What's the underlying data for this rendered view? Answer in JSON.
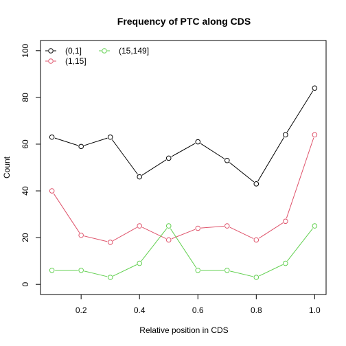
{
  "chart_data": {
    "type": "line",
    "title": "Frequency of PTC along CDS",
    "xlabel": "Relative position in CDS",
    "ylabel": "Count",
    "x": [
      0.1,
      0.2,
      0.3,
      0.4,
      0.5,
      0.6,
      0.7,
      0.8,
      0.9,
      1.0
    ],
    "xlim": [
      0.1,
      1.0
    ],
    "ylim": [
      0,
      100
    ],
    "x_ticks": [
      0.2,
      0.4,
      0.6,
      0.8,
      1.0
    ],
    "x_tick_labels": [
      "0.2",
      "0.4",
      "0.6",
      "0.8",
      "1.0"
    ],
    "y_ticks": [
      0,
      20,
      40,
      60,
      80,
      100
    ],
    "y_tick_labels": [
      "0",
      "20",
      "40",
      "60",
      "80",
      "100"
    ],
    "grid": false,
    "legend_position": "top-left",
    "series": [
      {
        "name": "(0,1]",
        "color": "#000000",
        "values": [
          63,
          59,
          63,
          46,
          54,
          61,
          53,
          43,
          64,
          84
        ]
      },
      {
        "name": "(1,15]",
        "color": "#DF536B",
        "values": [
          40,
          21,
          18,
          25,
          19,
          24,
          25,
          19,
          27,
          64
        ]
      },
      {
        "name": "(15,149]",
        "color": "#61D04F",
        "values": [
          6,
          6,
          3,
          9,
          25,
          6,
          6,
          3,
          9,
          25
        ]
      }
    ]
  }
}
